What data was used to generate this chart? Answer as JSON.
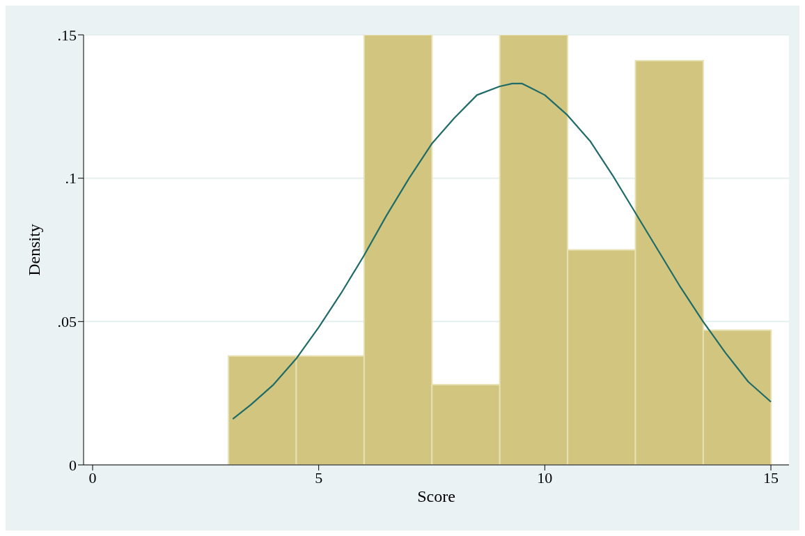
{
  "chart_data": {
    "type": "histogram",
    "xlabel": "Score",
    "ylabel": "Density",
    "bins": [
      3,
      4.5,
      6,
      7.5,
      9,
      10.5,
      12,
      13.5,
      15
    ],
    "values": [
      0.038,
      0.038,
      0.15,
      0.028,
      0.15,
      0.075,
      0.141,
      0.047
    ],
    "color": "#d1c57f",
    "series": [
      {
        "type": "line",
        "color": "#1f6b68",
        "x": [
          3.1,
          3.5,
          4,
          4.5,
          5,
          5.5,
          6,
          6.5,
          7,
          7.5,
          8,
          8.5,
          9,
          9.28,
          9.5,
          10,
          10.5,
          11,
          11.5,
          12,
          12.5,
          13,
          13.5,
          14,
          14.5,
          15
        ],
        "values": [
          0.016,
          0.021,
          0.028,
          0.037,
          0.048,
          0.06,
          0.073,
          0.087,
          0.1,
          0.112,
          0.121,
          0.129,
          0.132,
          0.133,
          0.133,
          0.129,
          0.122,
          0.113,
          0.101,
          0.088,
          0.075,
          0.062,
          0.05,
          0.039,
          0.029,
          0.022
        ]
      }
    ],
    "xlim": [
      -0.2,
      15.4
    ],
    "xticks": [
      0,
      5,
      10,
      15
    ],
    "ylim": [
      0,
      0.15
    ],
    "yticks": [
      0,
      {
        "value": 0.05,
        "label": ".05"
      },
      {
        "value": 0.1,
        "label": ".1"
      },
      {
        "value": 0.15,
        "label": ".15"
      }
    ],
    "grid": "y",
    "legend": false,
    "marker": "none",
    "line_style": "solid"
  }
}
